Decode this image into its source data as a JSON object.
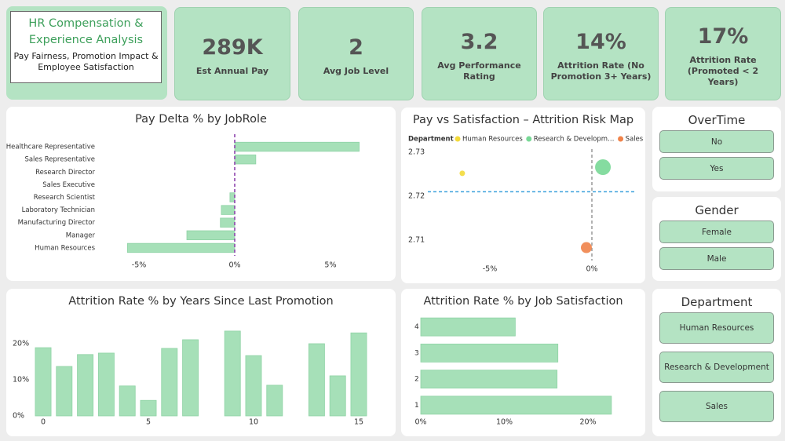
{
  "header": {
    "title": "HR Compensation & Experience Analysis",
    "subtitle": "Pay Fairness, Promotion Impact & Employee Satisfaction"
  },
  "kpis": [
    {
      "value": "289K",
      "label": "Est Annual Pay"
    },
    {
      "value": "2",
      "label": "Avg Job Level"
    },
    {
      "value": "3.2",
      "label": "Avg Performance Rating"
    },
    {
      "value": "14%",
      "label": "Attrition Rate (No Promotion 3+ Years)"
    },
    {
      "value": "17%",
      "label": "Attrition Rate (Promoted < 2 Years)"
    }
  ],
  "chart_data": [
    {
      "type": "hbar",
      "title": "Pay Delta % by JobRole",
      "categories": [
        "Healthcare Representative",
        "Sales Representative",
        "Research Director",
        "Sales Executive",
        "Research Scientist",
        "Laboratory Technician",
        "Manufacturing Director",
        "Manager",
        "Human Resources"
      ],
      "values": [
        6.5,
        1.1,
        0,
        0,
        -0.25,
        -0.7,
        -0.75,
        -2.5,
        -5.6
      ],
      "color": "#a6e0b8",
      "xlim": [
        -5.6,
        6.6
      ],
      "xticks": [
        {
          "value": -5,
          "label": "-5%"
        },
        {
          "value": 0,
          "label": "0%"
        },
        {
          "value": 5,
          "label": "5%"
        }
      ],
      "reference_lines": {
        "x": 0,
        "color": "#8e44ad"
      }
    },
    {
      "type": "scatter",
      "title": "Pay vs Satisfaction – Attrition Risk Map",
      "legend_title": "Department",
      "series": [
        {
          "name": "Human Resources",
          "color": "#f3da3a",
          "x": [
            -6.35
          ],
          "values": [
            2.7252
          ]
        },
        {
          "name": "Research & Developm…",
          "color": "#78d896",
          "x": [
            0.54
          ],
          "values": [
            2.7266
          ]
        },
        {
          "name": "Sales",
          "color": "#f0834a",
          "x": [
            -0.27
          ],
          "values": [
            2.7083
          ]
        }
      ],
      "xlim": [
        -9,
        2.2
      ],
      "ylim": [
        2.705,
        2.732
      ],
      "xticks": [
        {
          "value": -5,
          "label": "-5%"
        },
        {
          "value": 0,
          "label": "0%"
        }
      ],
      "yticks": [
        2.71,
        2.72,
        2.73
      ],
      "reference_lines": {
        "x": 0,
        "y": 2.721
      }
    },
    {
      "type": "bar",
      "title": "Attrition Rate % by Years Since Last Promotion",
      "x": [
        0,
        1,
        2,
        3,
        4,
        5,
        6,
        7,
        9,
        10,
        11,
        13,
        14,
        15
      ],
      "values": [
        18.9,
        13.7,
        17.0,
        17.4,
        8.3,
        4.3,
        18.7,
        21.1,
        23.5,
        16.7,
        8.5,
        20.0,
        11.1,
        23.0
      ],
      "color": "#a6e0b8",
      "xlim": [
        -0.5,
        15.5
      ],
      "ylim": [
        0,
        24
      ],
      "xticks": [
        0,
        5,
        10,
        15
      ],
      "yticks": [
        {
          "value": 0,
          "label": "0%"
        },
        {
          "value": 10,
          "label": "10%"
        },
        {
          "value": 20,
          "label": "20%"
        }
      ]
    },
    {
      "type": "hbar",
      "title": "Attrition Rate % by Job Satisfaction",
      "categories": [
        "4",
        "3",
        "2",
        "1"
      ],
      "values": [
        11.3,
        16.4,
        16.3,
        22.8
      ],
      "color": "#a6e0b8",
      "xlim": [
        0,
        23
      ],
      "xticks": [
        {
          "value": 0,
          "label": "0%"
        },
        {
          "value": 10,
          "label": "10%"
        },
        {
          "value": 20,
          "label": "20%"
        }
      ]
    }
  ],
  "slicers": [
    {
      "title": "OverTime",
      "options": [
        "No",
        "Yes"
      ]
    },
    {
      "title": "Gender",
      "options": [
        "Female",
        "Male"
      ]
    },
    {
      "title": "Department",
      "options": [
        "Human Resources",
        "Research & Development",
        "Sales"
      ]
    }
  ]
}
